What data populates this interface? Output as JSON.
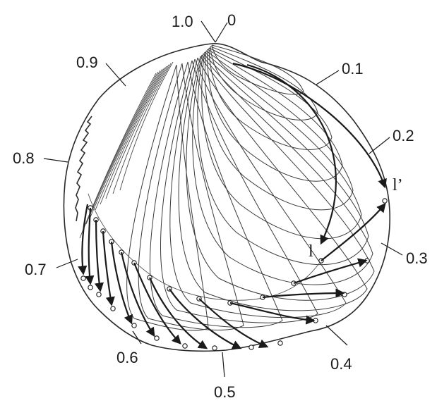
{
  "figure": {
    "perimeter_labels": [
      {
        "id": "p10",
        "text": "1.0"
      },
      {
        "id": "p0",
        "text": "0"
      },
      {
        "id": "p01",
        "text": "0.1"
      },
      {
        "id": "p02",
        "text": "0.2"
      },
      {
        "id": "p03",
        "text": "0.3"
      },
      {
        "id": "p04",
        "text": "0.4"
      },
      {
        "id": "p05",
        "text": "0.5"
      },
      {
        "id": "p06",
        "text": "0.6"
      },
      {
        "id": "p07",
        "text": "0.7"
      },
      {
        "id": "p08",
        "text": "0.8"
      },
      {
        "id": "p09",
        "text": "0.9"
      }
    ],
    "point_labels": {
      "l": "l",
      "l_prime": "l’"
    }
  }
}
